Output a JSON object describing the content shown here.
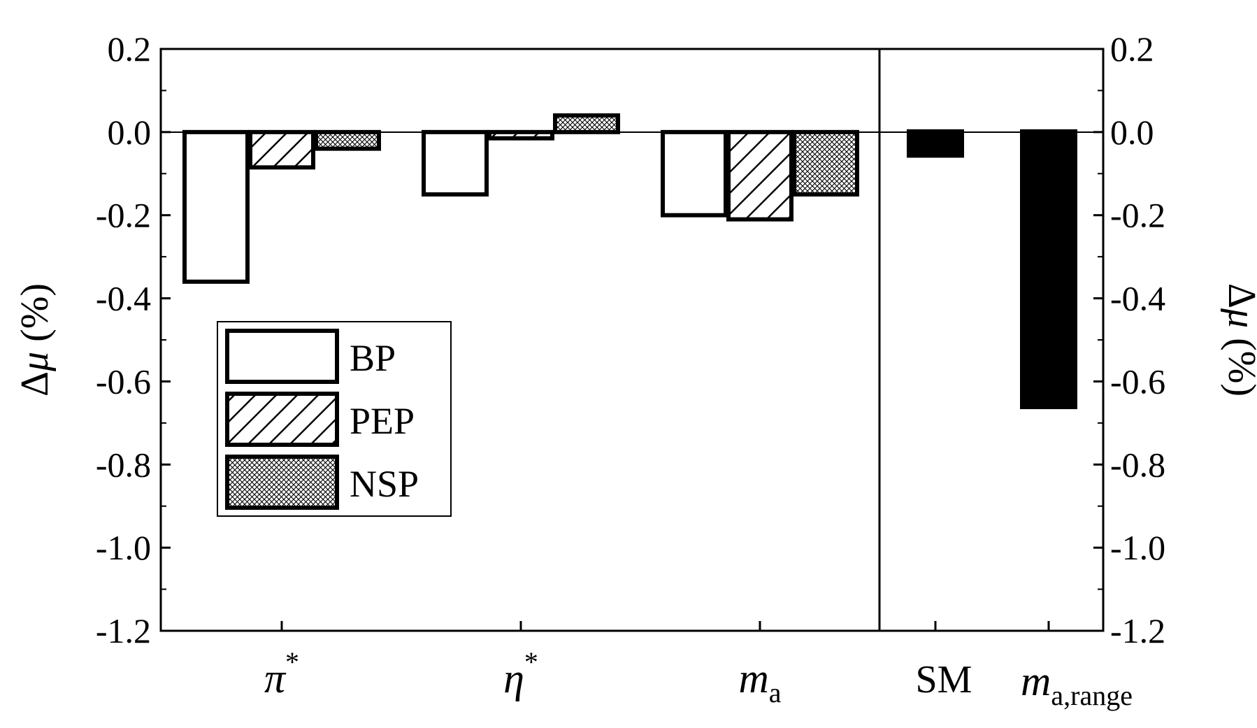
{
  "chart_data": {
    "type": "bar",
    "left_panel": {
      "categories": [
        {
          "main": "π",
          "sup": "*",
          "sub": ""
        },
        {
          "main": "η",
          "sup": "*",
          "sub": ""
        },
        {
          "main": "m",
          "sup": "",
          "sub": "a"
        }
      ],
      "series": [
        {
          "name": "BP",
          "pattern": "empty",
          "values": [
            -0.36,
            -0.15,
            -0.2
          ]
        },
        {
          "name": "PEP",
          "pattern": "diagonal-hatch",
          "values": [
            -0.085,
            -0.015,
            -0.21
          ]
        },
        {
          "name": "NSP",
          "pattern": "crosshatch",
          "values": [
            -0.04,
            0.04,
            -0.15
          ]
        }
      ]
    },
    "right_panel": {
      "categories": [
        {
          "main": "SM",
          "sup": "",
          "sub": ""
        },
        {
          "main": "m",
          "sup": "",
          "sub": "a,range"
        }
      ],
      "values": [
        -0.06,
        -0.665
      ],
      "fill": "#000000"
    },
    "ylim": [
      -1.2,
      0.2
    ],
    "yticks": [
      "0.2",
      "0.0",
      "-0.2",
      "-0.4",
      "-0.6",
      "-0.8",
      "-1.0",
      "-1.2"
    ],
    "ylabel_left": {
      "prefix": "Δ",
      "symbol": "μ",
      "unit": " (%)"
    },
    "ylabel_right": {
      "prefix": "Δ",
      "symbol": "μ",
      "unit": " (%)"
    },
    "legend": {
      "position": "lower-left",
      "entries": [
        "BP",
        "PEP",
        "NSP"
      ]
    },
    "grid": false
  }
}
